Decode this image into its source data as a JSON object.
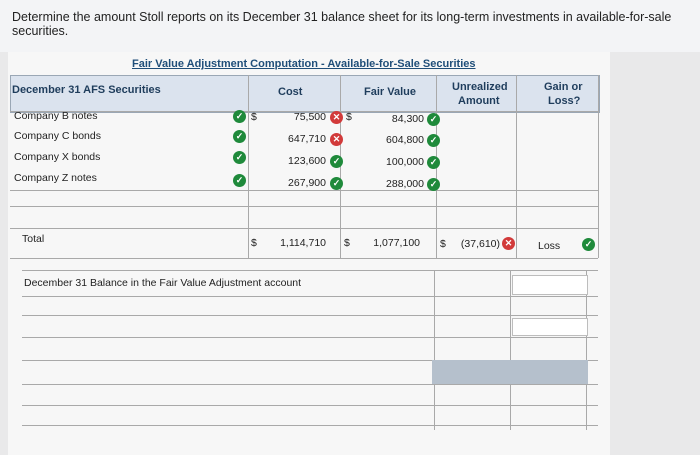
{
  "prompt": "Determine the amount Stoll reports on its December 31 balance sheet for its long-term investments in available-for-sale securities.",
  "table": {
    "title": "Fair Value Adjustment Computation - Available-for-Sale Securities",
    "headers": {
      "securities": "December 31 AFS Securities",
      "cost": "Cost",
      "fair_value": "Fair Value",
      "unrealized_1": "Unrealized",
      "unrealized_2": "Amount",
      "gain_loss_1": "Gain or",
      "gain_loss_2": "Loss?"
    },
    "rows": [
      {
        "name": "Company B notes",
        "cost": "75,500",
        "fair_value": "84,300",
        "cost_prefix": "$",
        "fv_prefix": "$"
      },
      {
        "name": "Company C bonds",
        "cost": "647,710",
        "fair_value": "604,800"
      },
      {
        "name": "Company X bonds",
        "cost": "123,600",
        "fair_value": "100,000"
      },
      {
        "name": "Company Z notes",
        "cost": "267,900",
        "fair_value": "288,000"
      }
    ],
    "total": {
      "label": "Total",
      "cost_prefix": "$",
      "cost": "1,114,710",
      "fv_prefix": "$",
      "fair_value": "1,077,100",
      "unreal_prefix": "$",
      "unrealized": "(37,610)",
      "gain_loss": "Loss"
    },
    "balance_label": "December 31 Balance in the Fair Value Adjustment account"
  },
  "marks": {
    "correct_icon": "check-circle-icon",
    "incorrect_icon": "x-circle-icon",
    "correct_color": "#1f8a3b",
    "incorrect_color": "#d23a3a"
  }
}
